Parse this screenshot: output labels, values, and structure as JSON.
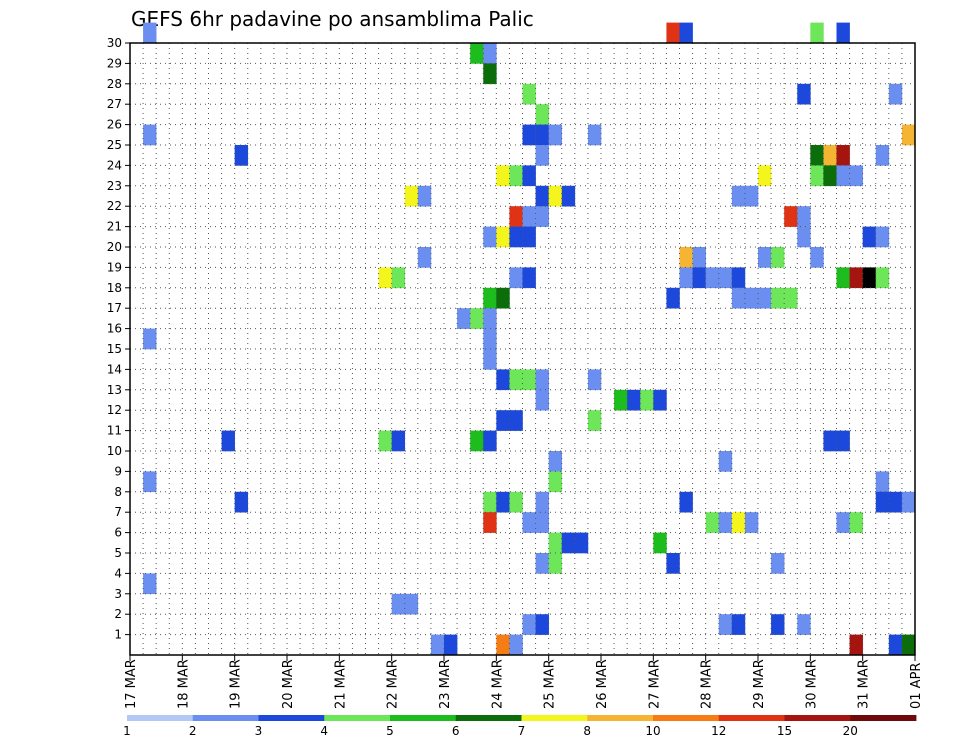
{
  "chart_data": {
    "type": "heatmap",
    "title": "GEFS 6hr padavine po ansamblima Palic",
    "x_tick_labels": [
      "17 MAR",
      "18 MAR",
      "19 MAR",
      "20 MAR",
      "21 MAR",
      "22 MAR",
      "23 MAR",
      "24 MAR",
      "25 MAR",
      "26 MAR",
      "27 MAR",
      "28 MAR",
      "29 MAR",
      "30 MAR",
      "31 MAR",
      "01 APR"
    ],
    "y_tick_labels": [
      "1",
      "2",
      "3",
      "4",
      "5",
      "6",
      "7",
      "8",
      "9",
      "10",
      "11",
      "12",
      "13",
      "14",
      "15",
      "16",
      "17",
      "18",
      "19",
      "20",
      "21",
      "22",
      "23",
      "24",
      "25",
      "26",
      "27",
      "28",
      "29",
      "30"
    ],
    "x_range_steps": [
      0,
      60
    ],
    "y_range_members": [
      0,
      30
    ],
    "grid": true,
    "legend": "bottom",
    "colorbar": {
      "boundaries": [
        "1",
        "2",
        "3",
        "4",
        "5",
        "6",
        "7",
        "8",
        "10",
        "12",
        "15",
        "20"
      ],
      "colors": [
        "#b4c8f5",
        "#6a8ff0",
        "#1d48dc",
        "#6ee65a",
        "#1dbd1d",
        "#0b6e0b",
        "#f5f51e",
        "#f5b432",
        "#f57d14",
        "#e03214",
        "#a5140e",
        "#6e0a0a"
      ]
    },
    "cells": [
      [
        1,
        30,
        1
      ],
      [
        41,
        30,
        9
      ],
      [
        42,
        30,
        2
      ],
      [
        52,
        30,
        3
      ],
      [
        54,
        30,
        2
      ],
      [
        26,
        29,
        4
      ],
      [
        27,
        29,
        1
      ],
      [
        27,
        28,
        5
      ],
      [
        30,
        27,
        3
      ],
      [
        51,
        27,
        2
      ],
      [
        58,
        27,
        1
      ],
      [
        31,
        26,
        3
      ],
      [
        1,
        25,
        1
      ],
      [
        30,
        25,
        2
      ],
      [
        31,
        25,
        2
      ],
      [
        32,
        25,
        1
      ],
      [
        35,
        25,
        1
      ],
      [
        59,
        25,
        7
      ],
      [
        8,
        24,
        2
      ],
      [
        31,
        24,
        1
      ],
      [
        52,
        24,
        5
      ],
      [
        53,
        24,
        7
      ],
      [
        54,
        24,
        10
      ],
      [
        57,
        24,
        1
      ],
      [
        28,
        23,
        6
      ],
      [
        29,
        23,
        3
      ],
      [
        30,
        23,
        2
      ],
      [
        48,
        23,
        6
      ],
      [
        52,
        23,
        3
      ],
      [
        53,
        23,
        5
      ],
      [
        54,
        23,
        1
      ],
      [
        55,
        23,
        1
      ],
      [
        21,
        22,
        6
      ],
      [
        22,
        22,
        1
      ],
      [
        31,
        22,
        2
      ],
      [
        32,
        22,
        6
      ],
      [
        33,
        22,
        2
      ],
      [
        46,
        22,
        1
      ],
      [
        47,
        22,
        1
      ],
      [
        29,
        21,
        9
      ],
      [
        30,
        21,
        1
      ],
      [
        31,
        21,
        1
      ],
      [
        50,
        21,
        9
      ],
      [
        51,
        21,
        1
      ],
      [
        27,
        20,
        1
      ],
      [
        28,
        20,
        6
      ],
      [
        29,
        20,
        2
      ],
      [
        30,
        20,
        2
      ],
      [
        51,
        20,
        1
      ],
      [
        56,
        20,
        2
      ],
      [
        57,
        20,
        1
      ],
      [
        22,
        19,
        1
      ],
      [
        42,
        19,
        7
      ],
      [
        43,
        19,
        1
      ],
      [
        48,
        19,
        1
      ],
      [
        49,
        19,
        3
      ],
      [
        52,
        19,
        1
      ],
      [
        19,
        18,
        6
      ],
      [
        20,
        18,
        3
      ],
      [
        29,
        18,
        1
      ],
      [
        30,
        18,
        2
      ],
      [
        42,
        18,
        1
      ],
      [
        43,
        18,
        2
      ],
      [
        44,
        18,
        1
      ],
      [
        45,
        18,
        1
      ],
      [
        46,
        18,
        2
      ],
      [
        54,
        18,
        4
      ],
      [
        55,
        18,
        10
      ],
      [
        56,
        18,
        12
      ],
      [
        57,
        18,
        3
      ],
      [
        27,
        17,
        4
      ],
      [
        28,
        17,
        5
      ],
      [
        41,
        17,
        2
      ],
      [
        46,
        17,
        1
      ],
      [
        47,
        17,
        1
      ],
      [
        48,
        17,
        1
      ],
      [
        49,
        17,
        3
      ],
      [
        50,
        17,
        3
      ],
      [
        25,
        16,
        1
      ],
      [
        26,
        16,
        3
      ],
      [
        27,
        16,
        1
      ],
      [
        1,
        15,
        1
      ],
      [
        27,
        15,
        1
      ],
      [
        27,
        14,
        1
      ],
      [
        28,
        13,
        2
      ],
      [
        29,
        13,
        3
      ],
      [
        30,
        13,
        3
      ],
      [
        31,
        13,
        1
      ],
      [
        35,
        13,
        1
      ],
      [
        31,
        12,
        1
      ],
      [
        37,
        12,
        4
      ],
      [
        38,
        12,
        2
      ],
      [
        39,
        12,
        3
      ],
      [
        40,
        12,
        2
      ],
      [
        28,
        11,
        2
      ],
      [
        29,
        11,
        2
      ],
      [
        35,
        11,
        3
      ],
      [
        7,
        10,
        2
      ],
      [
        19,
        10,
        3
      ],
      [
        20,
        10,
        2
      ],
      [
        26,
        10,
        4
      ],
      [
        27,
        10,
        2
      ],
      [
        53,
        10,
        2
      ],
      [
        54,
        10,
        2
      ],
      [
        32,
        9,
        1
      ],
      [
        45,
        9,
        1
      ],
      [
        1,
        8,
        1
      ],
      [
        32,
        8,
        3
      ],
      [
        57,
        8,
        1
      ],
      [
        8,
        7,
        2
      ],
      [
        27,
        7,
        3
      ],
      [
        28,
        7,
        2
      ],
      [
        29,
        7,
        3
      ],
      [
        31,
        7,
        1
      ],
      [
        42,
        7,
        2
      ],
      [
        57,
        7,
        2
      ],
      [
        58,
        7,
        2
      ],
      [
        59,
        7,
        1
      ],
      [
        27,
        6,
        9
      ],
      [
        30,
        6,
        1
      ],
      [
        31,
        6,
        1
      ],
      [
        44,
        6,
        3
      ],
      [
        45,
        6,
        1
      ],
      [
        46,
        6,
        6
      ],
      [
        47,
        6,
        1
      ],
      [
        54,
        6,
        1
      ],
      [
        55,
        6,
        3
      ],
      [
        32,
        5,
        3
      ],
      [
        33,
        5,
        2
      ],
      [
        34,
        5,
        2
      ],
      [
        40,
        5,
        4
      ],
      [
        31,
        4,
        1
      ],
      [
        32,
        4,
        3
      ],
      [
        41,
        4,
        2
      ],
      [
        49,
        4,
        1
      ],
      [
        1,
        3,
        1
      ],
      [
        20,
        2,
        1
      ],
      [
        21,
        2,
        1
      ],
      [
        30,
        1,
        1
      ],
      [
        31,
        1,
        2
      ],
      [
        45,
        1,
        1
      ],
      [
        46,
        1,
        2
      ],
      [
        49,
        1,
        2
      ],
      [
        51,
        1,
        1
      ],
      [
        23,
        0,
        1
      ],
      [
        24,
        0,
        2
      ],
      [
        28,
        0,
        8
      ],
      [
        29,
        0,
        1
      ],
      [
        55,
        0,
        10
      ],
      [
        58,
        0,
        2
      ],
      [
        59,
        0,
        5
      ]
    ]
  }
}
